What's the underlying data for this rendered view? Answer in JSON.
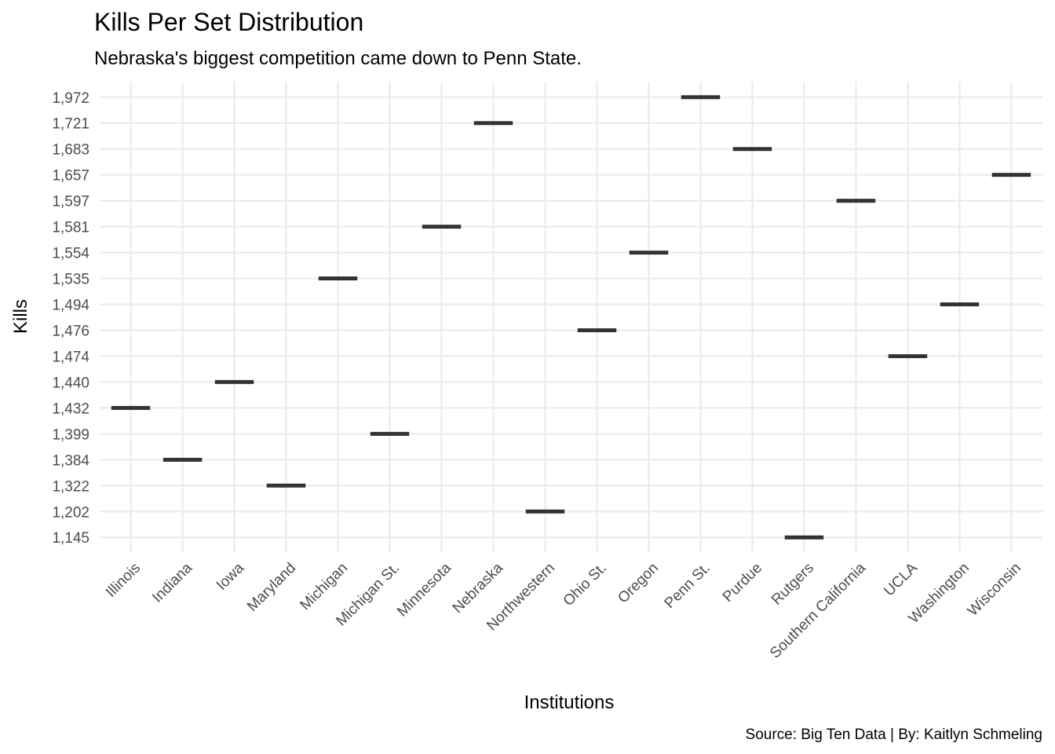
{
  "chart_data": {
    "type": "boxplot",
    "title": "Kills Per Set Distribution",
    "subtitle": "Nebraska's biggest competition came down to Penn State.",
    "xlabel": "Institutions",
    "ylabel": "Kills",
    "caption": "Source: Big Ten Data | By: Kaitlyn Schmeling",
    "y_scale": "discrete",
    "y_ticks": [
      "1,145",
      "1,202",
      "1,322",
      "1,384",
      "1,399",
      "1,432",
      "1,440",
      "1,474",
      "1,476",
      "1,494",
      "1,535",
      "1,554",
      "1,581",
      "1,597",
      "1,657",
      "1,683",
      "1,721",
      "1,972"
    ],
    "categories": [
      "Illinois",
      "Indiana",
      "Iowa",
      "Maryland",
      "Michigan",
      "Michigan St.",
      "Minnesota",
      "Nebraska",
      "Northwestern",
      "Ohio St.",
      "Oregon",
      "Penn St.",
      "Purdue",
      "Rutgers",
      "Southern California",
      "UCLA",
      "Washington",
      "Wisconsin"
    ],
    "values": [
      "1,432",
      "1,384",
      "1,440",
      "1,322",
      "1,535",
      "1,399",
      "1,581",
      "1,721",
      "1,202",
      "1,476",
      "1,554",
      "1,972",
      "1,683",
      "1,145",
      "1,597",
      "1,474",
      "1,494",
      "1,657"
    ],
    "grid": true,
    "legend": "none"
  }
}
